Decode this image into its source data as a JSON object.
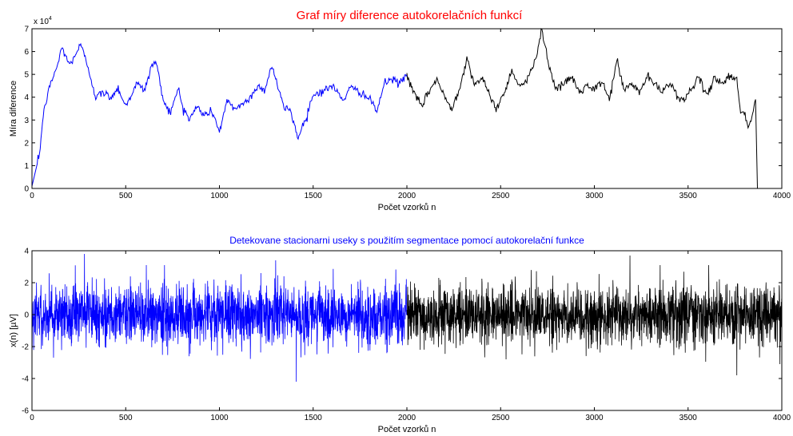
{
  "colors": {
    "segment1": "#0000ff",
    "segment2": "#000000",
    "title1": "#ff0000",
    "title2": "#0000ff"
  },
  "chart_data": [
    {
      "type": "line",
      "title": "Graf míry diference autokorelačních funkcí",
      "xlabel": "Počet vzorků n",
      "ylabel": "Míra diference",
      "exponent_label": "x 10",
      "exponent_power": "4",
      "xlim": [
        0,
        4000
      ],
      "ylim": [
        0,
        7
      ],
      "y_scale_multiplier": 10000,
      "xticks": [
        "0",
        "500",
        "1000",
        "1500",
        "2000",
        "2500",
        "3000",
        "3500",
        "4000"
      ],
      "yticks": [
        "0",
        "1",
        "2",
        "3",
        "4",
        "5",
        "6",
        "7"
      ],
      "grid": false,
      "series": [
        {
          "color": "#0000ff",
          "x": [
            0,
            20,
            40,
            60,
            80,
            100,
            140,
            160,
            200,
            240,
            260,
            300,
            340,
            380,
            420,
            460,
            500,
            540,
            560,
            600,
            640,
            660,
            700,
            740,
            780,
            800,
            840,
            880,
            920,
            960,
            1000,
            1040,
            1080,
            1120,
            1160,
            1200,
            1240,
            1280,
            1320,
            1340,
            1380,
            1420,
            1460,
            1500,
            1560,
            1600,
            1660,
            1700,
            1760,
            1800,
            1840,
            1880,
            1920,
            1960,
            2000
          ],
          "y": [
            0.1,
            0.8,
            1.5,
            3.2,
            4.0,
            4.6,
            5.5,
            6.2,
            5.4,
            6.0,
            6.3,
            5.3,
            4.0,
            4.2,
            4.0,
            4.4,
            3.6,
            4.3,
            4.6,
            4.3,
            5.4,
            5.6,
            3.9,
            3.3,
            4.4,
            3.7,
            3.0,
            3.6,
            3.2,
            3.4,
            2.5,
            3.8,
            3.5,
            3.7,
            3.9,
            4.5,
            4.3,
            5.4,
            4.2,
            3.6,
            3.4,
            2.2,
            3.1,
            4.1,
            4.3,
            4.5,
            3.9,
            4.4,
            4.2,
            3.9,
            3.4,
            4.6,
            4.8,
            4.6,
            5.0
          ]
        },
        {
          "color": "#000000",
          "x": [
            2000,
            2040,
            2080,
            2120,
            2160,
            2200,
            2240,
            2280,
            2320,
            2360,
            2400,
            2440,
            2480,
            2520,
            2560,
            2600,
            2640,
            2680,
            2720,
            2760,
            2800,
            2840,
            2880,
            2920,
            2960,
            3000,
            3040,
            3080,
            3120,
            3160,
            3200,
            3240,
            3280,
            3320,
            3360,
            3400,
            3440,
            3480,
            3520,
            3560,
            3600,
            3640,
            3680,
            3720,
            3760,
            3780,
            3800,
            3820,
            3840,
            3860,
            3870,
            3875
          ],
          "y": [
            5.0,
            4.1,
            3.6,
            4.3,
            4.8,
            4.0,
            3.5,
            4.4,
            5.7,
            4.6,
            4.8,
            4.1,
            3.5,
            4.2,
            5.2,
            4.5,
            4.7,
            5.5,
            7.0,
            5.3,
            4.3,
            4.6,
            4.9,
            4.2,
            4.5,
            4.3,
            4.7,
            3.9,
            5.6,
            4.3,
            4.6,
            4.2,
            4.9,
            4.6,
            4.2,
            4.7,
            4.1,
            3.8,
            4.5,
            4.8,
            4.0,
            4.9,
            4.6,
            4.9,
            4.8,
            3.4,
            3.3,
            2.7,
            3.1,
            3.9,
            0.0,
            0.0
          ]
        }
      ]
    },
    {
      "type": "line",
      "title": "Detekovane stacionarni useky s použitím segmentace pomocí autokorelační funkce",
      "xlabel": "Počet vzorků n",
      "ylabel": "x(n) [µV]",
      "xlim": [
        0,
        4000
      ],
      "ylim": [
        -6,
        4
      ],
      "xticks": [
        "0",
        "500",
        "1000",
        "1500",
        "2000",
        "2500",
        "3000",
        "3500",
        "4000"
      ],
      "yticks": [
        "-6",
        "-4",
        "-2",
        "0",
        "2",
        "4"
      ],
      "grid": false,
      "n_samples": 4000,
      "amplitude_std": 1.0,
      "segments": [
        {
          "color": "#0000ff",
          "start": 0,
          "end": 2000
        },
        {
          "color": "#000000",
          "start": 2000,
          "end": 4000
        }
      ],
      "extremes": [
        {
          "n": 280,
          "value": 3.8
        },
        {
          "n": 1300,
          "value": 3.4
        },
        {
          "n": 1410,
          "value": -4.2
        },
        {
          "n": 3190,
          "value": 3.7
        },
        {
          "n": 3760,
          "value": -3.8
        }
      ]
    }
  ]
}
